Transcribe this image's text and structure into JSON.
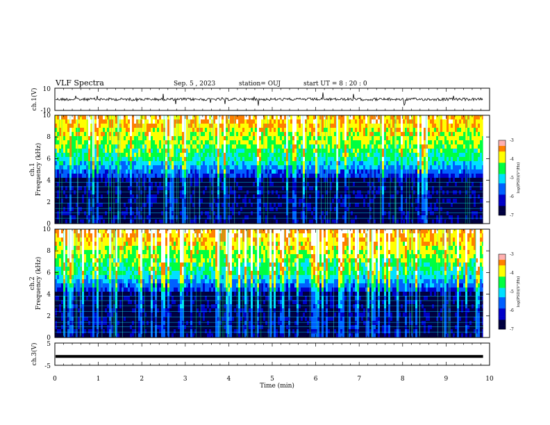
{
  "header": {
    "title": "VLF Spectra",
    "date": "Sep. 5 , 2023",
    "station": "station= OUJ",
    "start": "start  UT =   8 : 20 : 0"
  },
  "colors": {
    "colormap": [
      "#000040",
      "#0000c8",
      "#0060ff",
      "#00e0ff",
      "#00ff40",
      "#ffff00",
      "#ff8000",
      "#ff0000",
      "#ffffff"
    ]
  },
  "chart_data": [
    {
      "type": "line",
      "ylabel": "ch.1(V)",
      "ylim": [
        -10,
        10
      ],
      "yticks": [
        "10",
        "-10"
      ],
      "xlim": [
        0,
        10
      ],
      "description": "waveform ch.1"
    },
    {
      "type": "heatmap",
      "ylabel": "ch.1\nFrequency (kHz)",
      "ylabel_line1": "ch.1",
      "ylabel_line2": "Frequency (kHz)",
      "xlim": [
        0,
        10
      ],
      "ylim": [
        0,
        10
      ],
      "yticks": [
        "0",
        "2",
        "4",
        "6",
        "8",
        "10"
      ],
      "colorbar": {
        "range": [
          -7,
          -3
        ],
        "ticks": [
          "-3",
          "-4",
          "-5",
          "-6",
          "-7"
        ],
        "label": "log(PSD)(V²/Hz)"
      }
    },
    {
      "type": "heatmap",
      "ylabel_line1": "ch.2",
      "ylabel_line2": "Frequency (kHz)",
      "xlim": [
        0,
        10
      ],
      "ylim": [
        0,
        10
      ],
      "yticks": [
        "0",
        "2",
        "4",
        "6",
        "8",
        "10"
      ],
      "colorbar": {
        "range": [
          -7,
          -3
        ],
        "ticks": [
          "-3",
          "-4",
          "-5",
          "-6",
          "-7"
        ],
        "label": "log(PSD)(V²/Hz)"
      }
    },
    {
      "type": "line",
      "ylabel": "ch.3(V)",
      "ylim": [
        -5,
        5
      ],
      "yticks": [
        "5",
        "-5"
      ],
      "value": -1,
      "xlim": [
        0,
        10
      ],
      "xlabel": "Time (min)",
      "xticks": [
        "0",
        "1",
        "2",
        "3",
        "4",
        "5",
        "6",
        "7",
        "8",
        "9",
        "10"
      ],
      "data_end": 9.85
    }
  ]
}
